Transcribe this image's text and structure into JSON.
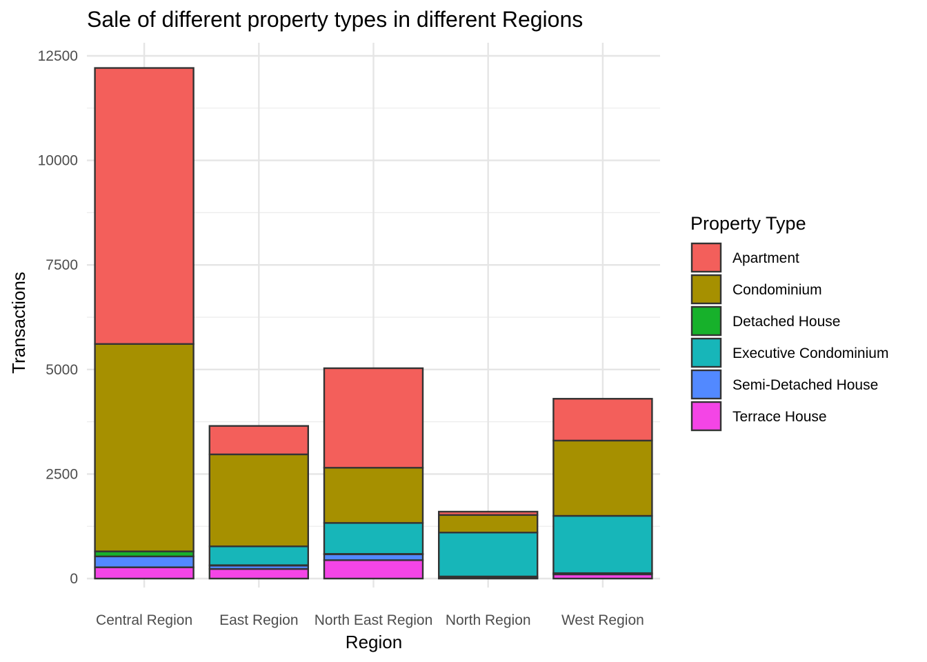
{
  "chart_data": {
    "type": "bar",
    "stacked": true,
    "title": "Sale of different property types in different Regions",
    "xlabel": "Region",
    "ylabel": "Transactions",
    "ylim": [
      0,
      12500
    ],
    "yticks": [
      0,
      2500,
      5000,
      7500,
      10000,
      12500
    ],
    "grid": true,
    "legend_position": "right",
    "legend_title": "Property Type",
    "categories": [
      "Central Region",
      "East Region",
      "North East Region",
      "North Region",
      "West Region"
    ],
    "series": [
      {
        "name": "Terrace House",
        "color": "#F445E6",
        "values": [
          270,
          230,
          440,
          20,
          100
        ]
      },
      {
        "name": "Semi-Detached House",
        "color": "#5289FF",
        "values": [
          260,
          80,
          140,
          20,
          20
        ]
      },
      {
        "name": "Detached House",
        "color": "#17B12B",
        "values": [
          120,
          10,
          10,
          10,
          10
        ]
      },
      {
        "name": "Executive Condominium",
        "color": "#17B6B9",
        "values": [
          0,
          450,
          740,
          1050,
          1370
        ]
      },
      {
        "name": "Condominium",
        "color": "#A69000",
        "values": [
          4960,
          2200,
          1320,
          420,
          1800
        ]
      },
      {
        "name": "Apartment",
        "color": "#F35F5B",
        "values": [
          6600,
          680,
          2380,
          80,
          1000
        ]
      }
    ],
    "legend_order": [
      "Apartment",
      "Condominium",
      "Detached House",
      "Executive Condominium",
      "Semi-Detached House",
      "Terrace House"
    ]
  }
}
